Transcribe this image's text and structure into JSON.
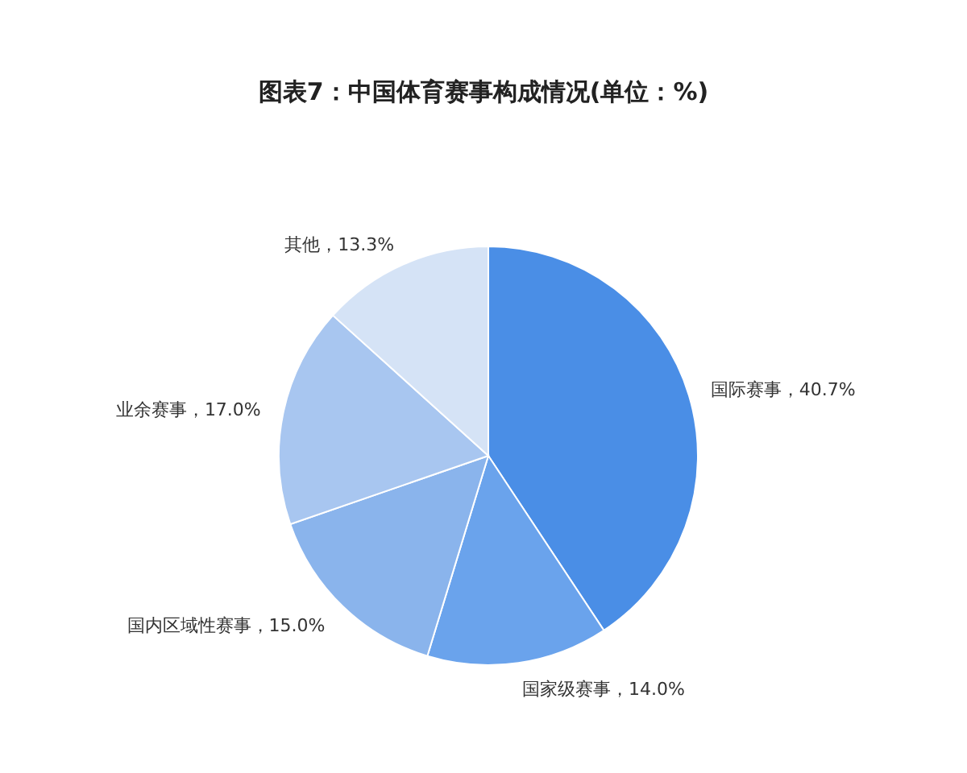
{
  "chart_data": {
    "type": "pie",
    "title": "图表7：中国体育赛事构成情况(单位：%)",
    "categories": [
      "国际赛事",
      "国家级赛事",
      "国内区域性赛事",
      "业余赛事",
      "其他"
    ],
    "values": [
      40.7,
      14.0,
      15.0,
      17.0,
      13.3
    ],
    "value_labels": [
      "40.7%",
      "14.0%",
      "15.0%",
      "17.0%",
      "13.3%"
    ],
    "colors": [
      "#4a8ee6",
      "#6aa3ec",
      "#8ab4ec",
      "#a8c6f0",
      "#d5e3f6"
    ],
    "legend": false
  }
}
